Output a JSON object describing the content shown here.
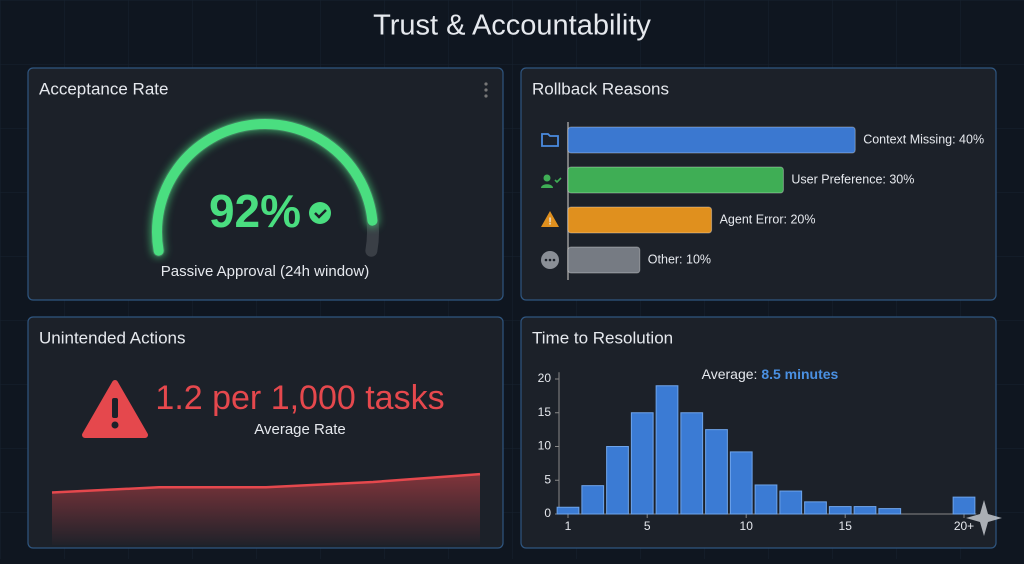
{
  "title": "Trust & Accountability",
  "chart_data": [
    {
      "type": "gauge",
      "title": "Acceptance Rate",
      "value": 92,
      "value_label": "92%",
      "ylim": [
        0,
        100
      ],
      "color": "#4ade80",
      "subtitle": "Passive Approval (24h window)"
    },
    {
      "type": "bar",
      "orientation": "horizontal",
      "title": "Rollback Reasons",
      "values": [
        40,
        30,
        20,
        10
      ],
      "value_labels": [
        "Context Missing: 40%",
        "User Preference: 30%",
        "Agent Error: 20%",
        "Other: 10%"
      ],
      "colors": [
        "#3b78d0",
        "#3fae55",
        "#e0901e",
        "#767b83"
      ],
      "xlim": [
        0,
        50
      ]
    },
    {
      "type": "line",
      "title": "Unintended Actions",
      "headline": "1.2 per 1,000 tasks",
      "subtitle": "Average Rate",
      "values": [
        1.0,
        1.1,
        1.1,
        1.2,
        1.35
      ],
      "ylim": [
        0,
        2
      ],
      "color": "#e5484d"
    },
    {
      "type": "histogram",
      "title": "Time to Resolution",
      "annotation_label": "Average:",
      "annotation_value": "8.5 minutes",
      "bins": [
        0.375,
        1.625,
        2.875,
        4.125,
        5.375,
        6.625,
        7.875,
        9.125,
        10.375,
        11.625,
        12.875,
        14.125,
        15.375,
        16.625,
        17.875,
        19.125,
        20.375,
        21.625
      ],
      "values": [
        1,
        4.2,
        10,
        15,
        19,
        15,
        12.5,
        9.2,
        4.3,
        3.4,
        1.8,
        1.1,
        1.1,
        0.8,
        0,
        0,
        2.5
      ],
      "color": "#3b7bd4",
      "xlim": [
        0.375,
        21.625
      ],
      "xticks": [
        1,
        5,
        10,
        15,
        {
          "value": 21,
          "label": "20+"
        }
      ],
      "ylim": [
        0,
        21
      ],
      "yticks": [
        0,
        5,
        10,
        15,
        20
      ]
    }
  ]
}
